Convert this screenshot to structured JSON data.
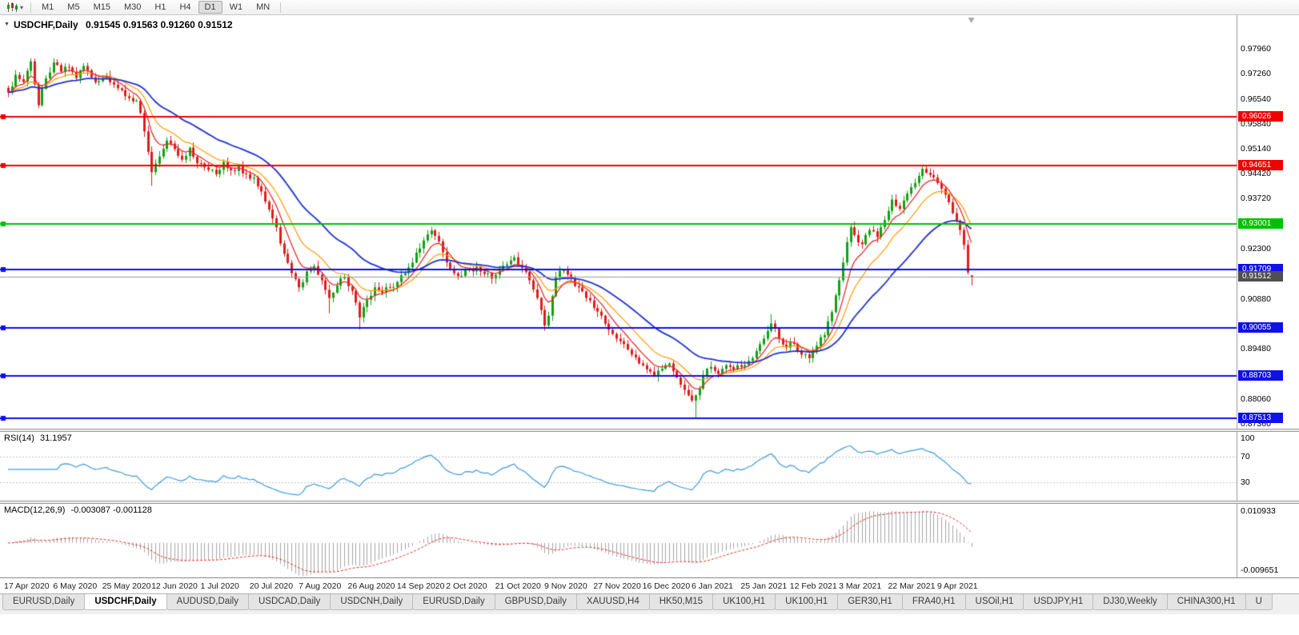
{
  "toolbar": {
    "chart_type_icon": "candlestick-chart-icon",
    "dropdown_caret": "▾",
    "timeframes": [
      "M1",
      "M5",
      "M15",
      "M30",
      "H1",
      "H4",
      "D1",
      "W1",
      "MN"
    ],
    "active_timeframe": "D1"
  },
  "chart_header": {
    "expand_icon": "▼",
    "symbol": "USDCHF,Daily",
    "quote": "0.91545 0.91563 0.91260 0.91512",
    "open": "0.91545",
    "high": "0.91563",
    "low": "0.91260",
    "close": "0.91512"
  },
  "price_axis": {
    "ticks": [
      "0.97960",
      "0.97260",
      "0.96540",
      "0.95840",
      "0.95140",
      "0.94420",
      "0.93720",
      "0.92300",
      "0.90880",
      "0.89480",
      "0.88060",
      "0.87360"
    ],
    "current_price": {
      "label": "0.91512",
      "value": 0.91512,
      "tag_color": "#4f4f4f",
      "line_color": "#9b9b9b"
    }
  },
  "levels": [
    {
      "label": "0.96026",
      "value": 0.96026,
      "color": "#f20000"
    },
    {
      "label": "0.94651",
      "value": 0.94651,
      "color": "#f20000"
    },
    {
      "label": "0.93001",
      "value": 0.93001,
      "color": "#00c000"
    },
    {
      "label": "0.91709",
      "value": 0.91709,
      "color": "#1010e8"
    },
    {
      "label": "0.90055",
      "value": 0.90055,
      "color": "#1010e8"
    },
    {
      "label": "0.88703",
      "value": 0.88703,
      "color": "#1010e8"
    },
    {
      "label": "0.87513",
      "value": 0.87513,
      "color": "#1010e8"
    }
  ],
  "rsi_panel": {
    "name": "RSI(14)",
    "value": "31.1957",
    "axis_labels": [
      {
        "text": "100",
        "value": 100
      },
      {
        "text": "70",
        "value": 70
      },
      {
        "text": "30",
        "value": 30
      }
    ],
    "guide_levels": [
      70,
      30
    ],
    "line_color": "#3e9bd8"
  },
  "macd_panel": {
    "name": "MACD(12,26,9)",
    "values": "-0.003087 -0.001128",
    "axis_top": "0.010933",
    "axis_bottom": "-0.009651",
    "histogram_color": "#a6a6a6",
    "signal_color": "#e03030"
  },
  "time_axis": {
    "labels": [
      "17 Apr 2020",
      "6 May 2020",
      "25 May 2020",
      "12 Jun 2020",
      "1 Jul 2020",
      "20 Jul 2020",
      "7 Aug 2020",
      "26 Aug 2020",
      "14 Sep 2020",
      "2 Oct 2020",
      "21 Oct 2020",
      "9 Nov 2020",
      "27 Nov 2020",
      "16 Dec 2020",
      "6 Jan 2021",
      "25 Jan 2021",
      "12 Feb 2021",
      "3 Mar 2021",
      "22 Mar 2021",
      "9 Apr 2021"
    ]
  },
  "tab_bar": {
    "active_index": 1,
    "tabs": [
      "EURUSD,Daily",
      "USDCHF,Daily",
      "AUDUSD,Daily",
      "USDCAD,Daily",
      "USDCNH,Daily",
      "EURUSD,Daily",
      "GBPUSD,Daily",
      "XAUUSD,H4",
      "HK50,M15",
      "UK100,H1",
      "UK100,H1",
      "GER30,H1",
      "FRA40,H1",
      "USOil,H1",
      "USDJPY,H1",
      "DJ30,Weekly",
      "CHINA300,H1",
      "U"
    ]
  },
  "chart_data": {
    "type": "candlestick",
    "symbol": "USDCHF",
    "period": "Daily",
    "candle_count": 256,
    "label_every_n_candles": 13,
    "visible_price_range": [
      0.87215,
      0.98905
    ],
    "up_color": "#12a112",
    "down_color": "#e01b1b",
    "last_candle": {
      "open": 0.91545,
      "high": 0.91563,
      "low": 0.9126,
      "close": 0.91512
    },
    "close_waypoints": [
      [
        0,
        0.9672
      ],
      [
        2,
        0.9722
      ],
      [
        4,
        0.9702
      ],
      [
        6,
        0.976
      ],
      [
        8,
        0.9636
      ],
      [
        10,
        0.9712
      ],
      [
        12,
        0.9757
      ],
      [
        14,
        0.9731
      ],
      [
        16,
        0.9743
      ],
      [
        18,
        0.9713
      ],
      [
        20,
        0.9747
      ],
      [
        23,
        0.9701
      ],
      [
        26,
        0.9719
      ],
      [
        29,
        0.9684
      ],
      [
        32,
        0.9656
      ],
      [
        34,
        0.9649
      ],
      [
        36,
        0.9562
      ],
      [
        38,
        0.9447
      ],
      [
        40,
        0.9491
      ],
      [
        42,
        0.9536
      ],
      [
        44,
        0.9512
      ],
      [
        46,
        0.9482
      ],
      [
        48,
        0.9516
      ],
      [
        50,
        0.9472
      ],
      [
        53,
        0.9453
      ],
      [
        55,
        0.9441
      ],
      [
        57,
        0.9476
      ],
      [
        59,
        0.9452
      ],
      [
        61,
        0.9463
      ],
      [
        63,
        0.9441
      ],
      [
        65,
        0.9431
      ],
      [
        67,
        0.9392
      ],
      [
        69,
        0.9341
      ],
      [
        71,
        0.9291
      ],
      [
        73,
        0.9216
      ],
      [
        75,
        0.9161
      ],
      [
        77,
        0.9121
      ],
      [
        79,
        0.9166
      ],
      [
        81,
        0.9181
      ],
      [
        83,
        0.9141
      ],
      [
        85,
        0.9091
      ],
      [
        87,
        0.9126
      ],
      [
        89,
        0.9151
      ],
      [
        91,
        0.9111
      ],
      [
        93,
        0.9036
      ],
      [
        95,
        0.9086
      ],
      [
        97,
        0.9121
      ],
      [
        99,
        0.9106
      ],
      [
        101,
        0.9121
      ],
      [
        103,
        0.9136
      ],
      [
        105,
        0.9161
      ],
      [
        107,
        0.9191
      ],
      [
        109,
        0.9231
      ],
      [
        111,
        0.9271
      ],
      [
        112,
        0.9282
      ],
      [
        114,
        0.9251
      ],
      [
        116,
        0.9191
      ],
      [
        118,
        0.9161
      ],
      [
        120,
        0.9153
      ],
      [
        122,
        0.9171
      ],
      [
        124,
        0.9179
      ],
      [
        126,
        0.9159
      ],
      [
        128,
        0.9146
      ],
      [
        130,
        0.9169
      ],
      [
        132,
        0.9186
      ],
      [
        134,
        0.9206
      ],
      [
        136,
        0.9176
      ],
      [
        138,
        0.9141
      ],
      [
        140,
        0.9091
      ],
      [
        142,
        0.9013
      ],
      [
        143,
        0.9041
      ],
      [
        144,
        0.9096
      ],
      [
        145,
        0.9151
      ],
      [
        147,
        0.9169
      ],
      [
        149,
        0.9146
      ],
      [
        151,
        0.9121
      ],
      [
        153,
        0.9091
      ],
      [
        155,
        0.9063
      ],
      [
        157,
        0.9041
      ],
      [
        159,
        0.9001
      ],
      [
        161,
        0.8976
      ],
      [
        163,
        0.8961
      ],
      [
        165,
        0.8931
      ],
      [
        167,
        0.8906
      ],
      [
        169,
        0.8889
      ],
      [
        171,
        0.8869
      ],
      [
        173,
        0.8891
      ],
      [
        175,
        0.8906
      ],
      [
        177,
        0.8866
      ],
      [
        179,
        0.8831
      ],
      [
        181,
        0.8801
      ],
      [
        182,
        0.8816
      ],
      [
        184,
        0.8871
      ],
      [
        186,
        0.8896
      ],
      [
        188,
        0.8876
      ],
      [
        190,
        0.8901
      ],
      [
        192,
        0.8889
      ],
      [
        194,
        0.8896
      ],
      [
        196,
        0.8913
      ],
      [
        198,
        0.8941
      ],
      [
        200,
        0.8976
      ],
      [
        202,
        0.9019
      ],
      [
        204,
        0.8976
      ],
      [
        206,
        0.8951
      ],
      [
        208,
        0.8961
      ],
      [
        210,
        0.8931
      ],
      [
        212,
        0.8921
      ],
      [
        214,
        0.8956
      ],
      [
        216,
        0.8986
      ],
      [
        218,
        0.9051
      ],
      [
        220,
        0.9141
      ],
      [
        222,
        0.9249
      ],
      [
        223,
        0.9291
      ],
      [
        224,
        0.9269
      ],
      [
        226,
        0.9243
      ],
      [
        228,
        0.9283
      ],
      [
        230,
        0.9263
      ],
      [
        232,
        0.9311
      ],
      [
        234,
        0.9369
      ],
      [
        236,
        0.9343
      ],
      [
        238,
        0.9386
      ],
      [
        240,
        0.9416
      ],
      [
        242,
        0.9456
      ],
      [
        244,
        0.9439
      ],
      [
        246,
        0.9416
      ],
      [
        248,
        0.9383
      ],
      [
        250,
        0.9331
      ],
      [
        252,
        0.9283
      ],
      [
        253,
        0.9241
      ],
      [
        254,
        0.9163
      ],
      [
        255,
        0.91512
      ]
    ],
    "wick_overrides": [
      {
        "index": 38,
        "low": 0.9408
      },
      {
        "index": 85,
        "low": 0.9048
      },
      {
        "index": 93,
        "low": 0.9002
      },
      {
        "index": 112,
        "high": 0.9292
      },
      {
        "index": 142,
        "low": 0.8998
      },
      {
        "index": 182,
        "low": 0.8752
      },
      {
        "index": 202,
        "high": 0.9045
      },
      {
        "index": 242,
        "high": 0.9468
      }
    ],
    "moving_averages": [
      {
        "type": "ema",
        "period": 14,
        "color": "#ff9b00",
        "width": 1.2
      },
      {
        "type": "ema",
        "period": 7,
        "color": "#e62e2e",
        "width": 1.3
      },
      {
        "type": "ema",
        "period": 32,
        "color": "#2233cc",
        "width": 1.8
      }
    ],
    "rsi": {
      "period": 14,
      "display_range": [
        0,
        110
      ],
      "last_value": 31.1957
    },
    "macd": {
      "fast": 12,
      "slow": 26,
      "signal": 9,
      "display_range": [
        -0.009651,
        0.010933
      ],
      "last_main": -0.003087,
      "last_signal": -0.001128
    }
  }
}
